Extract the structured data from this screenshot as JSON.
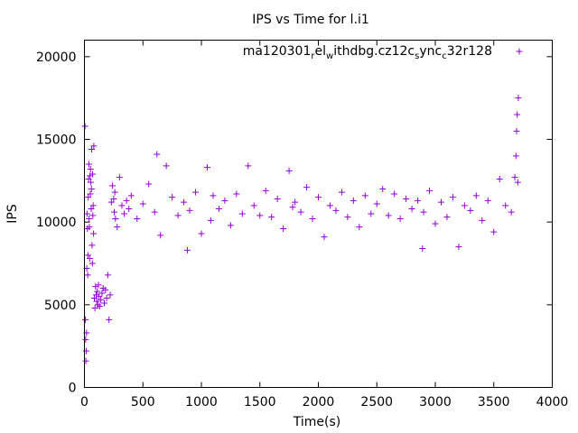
{
  "chart_data": {
    "type": "scatter",
    "title": "IPS vs Time for l.i1",
    "xlabel": "Time(s)",
    "ylabel": "IPS",
    "xlim": [
      0,
      4000
    ],
    "ylim": [
      0,
      21000
    ],
    "xticks": [
      0,
      500,
      1000,
      1500,
      2000,
      2500,
      3000,
      3500,
      4000
    ],
    "yticks": [
      0,
      5000,
      10000,
      15000,
      20000
    ],
    "grid": false,
    "legend_position": "top-right",
    "marker": "plus",
    "series": [
      {
        "name": "ma120301_rel_withdbg.cz12c_sync_c32r128",
        "legend_parts": [
          "ma120301",
          "r",
          "el",
          "w",
          "ithdbg.cz12c",
          "s",
          "ync",
          "c",
          "32r128"
        ],
        "color": "#9400d3",
        "x": [
          5,
          8,
          10,
          12,
          15,
          18,
          20,
          22,
          25,
          28,
          30,
          32,
          35,
          38,
          40,
          42,
          45,
          48,
          50,
          52,
          55,
          58,
          60,
          62,
          65,
          68,
          70,
          72,
          75,
          78,
          80,
          85,
          90,
          95,
          100,
          105,
          110,
          115,
          120,
          125,
          130,
          140,
          150,
          160,
          170,
          180,
          190,
          200,
          210,
          220,
          230,
          240,
          250,
          255,
          260,
          265,
          280,
          300,
          320,
          340,
          360,
          380,
          400,
          450,
          500,
          550,
          600,
          620,
          650,
          700,
          750,
          800,
          850,
          880,
          900,
          950,
          1000,
          1050,
          1080,
          1100,
          1150,
          1200,
          1250,
          1300,
          1350,
          1400,
          1450,
          1500,
          1550,
          1600,
          1650,
          1700,
          1750,
          1780,
          1800,
          1850,
          1900,
          1950,
          2000,
          2050,
          2100,
          2150,
          2200,
          2250,
          2300,
          2350,
          2400,
          2450,
          2500,
          2550,
          2600,
          2650,
          2700,
          2750,
          2800,
          2850,
          2890,
          2900,
          2950,
          3000,
          3050,
          3100,
          3150,
          3200,
          3250,
          3300,
          3350,
          3400,
          3450,
          3500,
          3550,
          3600,
          3650,
          3680,
          3690,
          3695,
          3700,
          3705,
          3710
        ],
        "y": [
          15800,
          4100,
          2900,
          1600,
          2200,
          3300,
          7200,
          10500,
          9600,
          6800,
          8000,
          11500,
          12600,
          13500,
          10200,
          9700,
          7800,
          12800,
          11700,
          13200,
          12400,
          10800,
          12000,
          14400,
          8600,
          7500,
          12900,
          10400,
          11000,
          9300,
          14600,
          5400,
          4800,
          6100,
          5600,
          5200,
          5800,
          5000,
          6200,
          5500,
          4900,
          5300,
          5700,
          6000,
          5100,
          5900,
          5400,
          6800,
          4100,
          5600,
          11200,
          12200,
          11400,
          10600,
          11800,
          10200,
          9700,
          12700,
          11000,
          10500,
          11300,
          10800,
          11600,
          10200,
          11100,
          12300,
          10600,
          14100,
          9200,
          13400,
          11500,
          10400,
          11200,
          8300,
          10700,
          11800,
          9300,
          13300,
          10100,
          11600,
          10800,
          11300,
          9800,
          11700,
          10500,
          13400,
          11000,
          10400,
          11900,
          10300,
          11400,
          9600,
          13100,
          10900,
          11200,
          10600,
          12100,
          10200,
          11500,
          9100,
          11000,
          10700,
          11800,
          10300,
          11300,
          9700,
          11600,
          10500,
          11100,
          12000,
          10400,
          11700,
          10200,
          11400,
          10800,
          11300,
          8400,
          10600,
          11900,
          9900,
          11200,
          10300,
          11500,
          8500,
          11000,
          10700,
          11600,
          10100,
          11300,
          9400,
          12600,
          11000,
          10600,
          12700,
          14000,
          15500,
          16500,
          12400,
          17500
        ]
      }
    ]
  }
}
